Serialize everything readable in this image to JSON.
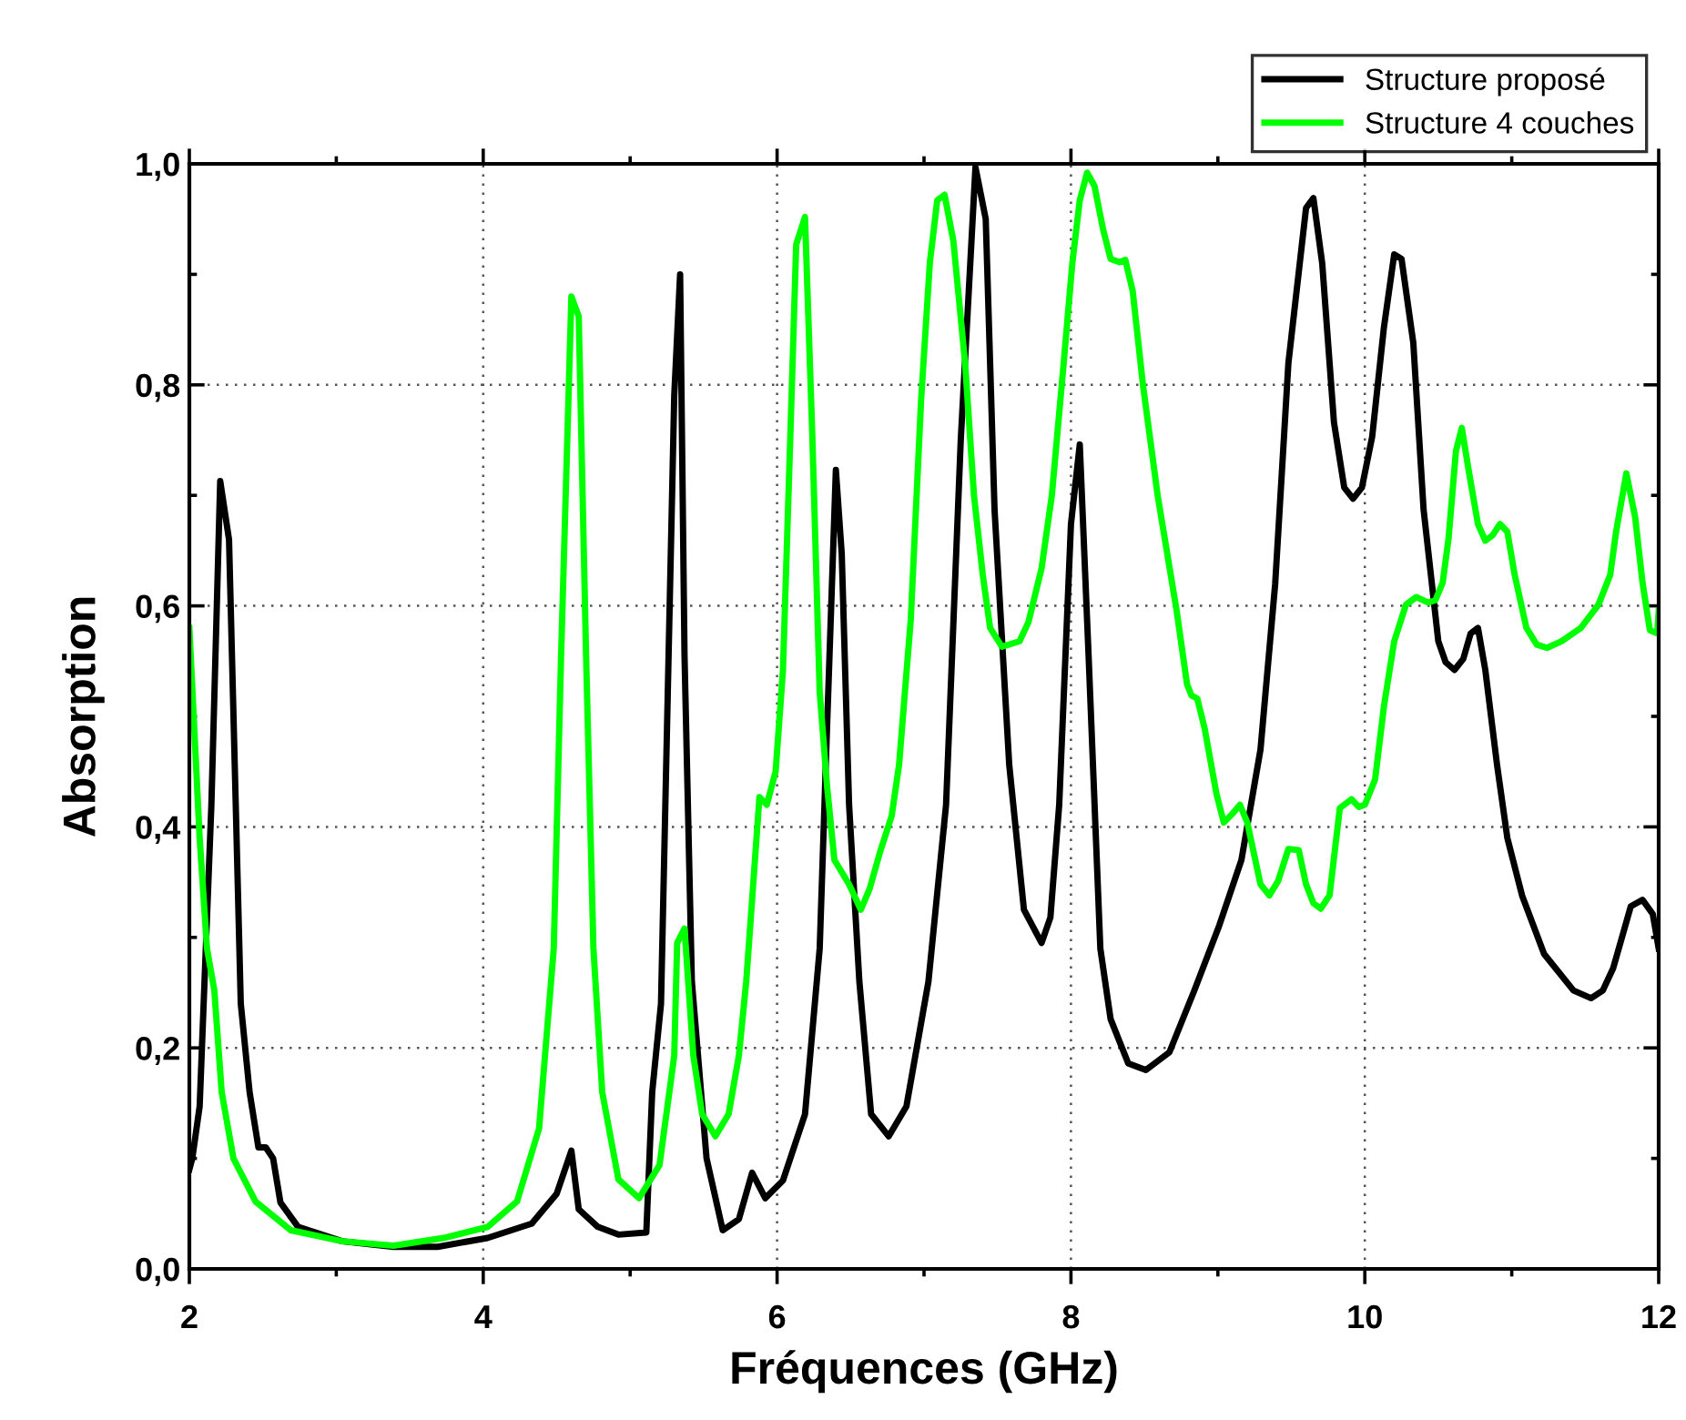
{
  "chart_data": {
    "type": "line",
    "xlabel": "Fréquences (GHz)",
    "ylabel": "Absorption",
    "xlim": [
      2,
      12
    ],
    "ylim": [
      0,
      1
    ],
    "xticks": [
      2,
      {
        "value": 3,
        "label": null
      },
      4,
      {
        "value": 5,
        "label": null
      },
      6,
      {
        "value": 7,
        "label": null
      },
      8,
      {
        "value": 9,
        "label": null
      },
      10,
      {
        "value": 11,
        "label": null
      },
      12
    ],
    "yticks": [
      {
        "value": 0,
        "label": "0,0"
      },
      {
        "value": 0.1,
        "label": null
      },
      {
        "value": 0.2,
        "label": "0,2"
      },
      {
        "value": 0.3,
        "label": null
      },
      {
        "value": 0.4,
        "label": "0,4"
      },
      {
        "value": 0.5,
        "label": null
      },
      {
        "value": 0.6,
        "label": "0,6"
      },
      {
        "value": 0.7,
        "label": null
      },
      {
        "value": 0.8,
        "label": "0,8"
      },
      {
        "value": 0.9,
        "label": null
      },
      {
        "value": 1,
        "label": "1,0"
      }
    ],
    "grid": true,
    "legend": "top right",
    "marker": "none",
    "line_style": "solid",
    "series": [
      {
        "name": "Structure proposé",
        "color": "#000000",
        "x": [
          2.0,
          2.02,
          2.07,
          2.15,
          2.21,
          2.27,
          2.35,
          2.41,
          2.47,
          2.52,
          2.57,
          2.62,
          2.74,
          3.04,
          3.39,
          3.69,
          4.03,
          4.33,
          4.5,
          4.6,
          4.65,
          4.78,
          4.92,
          5.11,
          5.15,
          5.21,
          5.3,
          5.34,
          5.37,
          5.42,
          5.52,
          5.63,
          5.74,
          5.83,
          5.92,
          6.04,
          6.19,
          6.29,
          6.34,
          6.4,
          6.44,
          6.49,
          6.56,
          6.64,
          6.76,
          6.88,
          7.03,
          7.15,
          7.25,
          7.35,
          7.42,
          7.48,
          7.58,
          7.68,
          7.8,
          7.86,
          7.92,
          8.0,
          8.06,
          8.12,
          8.2,
          8.27,
          8.39,
          8.51,
          8.67,
          8.84,
          9.01,
          9.16,
          9.29,
          9.39,
          9.48,
          9.6,
          9.65,
          9.71,
          9.79,
          9.86,
          9.92,
          9.98,
          10.05,
          10.13,
          10.2,
          10.25,
          10.33,
          10.4,
          10.5,
          10.55,
          10.61,
          10.67,
          10.72,
          10.77,
          10.82,
          10.9,
          10.97,
          11.07,
          11.22,
          11.42,
          11.54,
          11.62,
          11.69,
          11.81,
          11.89,
          11.96,
          12.0
        ],
        "values": [
          0.09,
          0.1,
          0.147,
          0.42,
          0.713,
          0.66,
          0.24,
          0.16,
          0.11,
          0.11,
          0.1,
          0.06,
          0.038,
          0.025,
          0.02,
          0.02,
          0.028,
          0.041,
          0.068,
          0.107,
          0.054,
          0.038,
          0.031,
          0.033,
          0.16,
          0.24,
          0.79,
          0.9,
          0.555,
          0.26,
          0.1,
          0.035,
          0.045,
          0.087,
          0.064,
          0.08,
          0.14,
          0.29,
          0.49,
          0.723,
          0.647,
          0.42,
          0.26,
          0.14,
          0.12,
          0.147,
          0.26,
          0.42,
          0.75,
          0.997,
          0.95,
          0.687,
          0.456,
          0.325,
          0.295,
          0.318,
          0.42,
          0.674,
          0.746,
          0.555,
          0.29,
          0.226,
          0.186,
          0.18,
          0.196,
          0.252,
          0.311,
          0.37,
          0.47,
          0.62,
          0.82,
          0.96,
          0.969,
          0.91,
          0.766,
          0.707,
          0.697,
          0.707,
          0.753,
          0.852,
          0.918,
          0.914,
          0.838,
          0.687,
          0.568,
          0.549,
          0.542,
          0.552,
          0.575,
          0.58,
          0.542,
          0.456,
          0.39,
          0.338,
          0.285,
          0.252,
          0.245,
          0.252,
          0.272,
          0.328,
          0.334,
          0.321,
          0.29
        ]
      },
      {
        "name": "Structure 4 couches",
        "color": "#00ff00",
        "x": [
          2.0,
          2.07,
          2.12,
          2.17,
          2.22,
          2.3,
          2.45,
          2.69,
          3.04,
          3.39,
          3.73,
          4.03,
          4.23,
          4.38,
          4.48,
          4.53,
          4.6,
          4.65,
          4.7,
          4.75,
          4.81,
          4.92,
          5.06,
          5.2,
          5.3,
          5.32,
          5.37,
          5.43,
          5.49,
          5.58,
          5.67,
          5.74,
          5.79,
          5.88,
          5.93,
          5.99,
          6.04,
          6.09,
          6.13,
          6.19,
          6.24,
          6.29,
          6.34,
          6.39,
          6.49,
          6.57,
          6.63,
          6.7,
          6.78,
          6.83,
          6.91,
          6.98,
          7.04,
          7.09,
          7.14,
          7.2,
          7.28,
          7.34,
          7.4,
          7.45,
          7.53,
          7.65,
          7.71,
          7.8,
          7.87,
          7.95,
          8.01,
          8.06,
          8.11,
          8.16,
          8.22,
          8.27,
          8.33,
          8.37,
          8.42,
          8.49,
          8.59,
          8.72,
          8.79,
          8.82,
          8.86,
          8.91,
          8.99,
          9.04,
          9.1,
          9.15,
          9.2,
          9.29,
          9.35,
          9.41,
          9.48,
          9.55,
          9.6,
          9.65,
          9.7,
          9.76,
          9.83,
          9.91,
          9.96,
          10.0,
          10.07,
          10.13,
          10.2,
          10.28,
          10.35,
          10.43,
          10.48,
          10.53,
          10.57,
          10.62,
          10.66,
          10.71,
          10.77,
          10.82,
          10.87,
          10.92,
          10.97,
          11.02,
          11.1,
          11.17,
          11.24,
          11.34,
          11.47,
          11.59,
          11.67,
          11.71,
          11.78,
          11.84,
          11.89,
          11.94,
          11.99,
          12.0
        ],
        "values": [
          0.58,
          0.39,
          0.29,
          0.252,
          0.16,
          0.1,
          0.061,
          0.035,
          0.025,
          0.021,
          0.028,
          0.038,
          0.061,
          0.127,
          0.29,
          0.555,
          0.88,
          0.862,
          0.555,
          0.29,
          0.16,
          0.081,
          0.064,
          0.094,
          0.193,
          0.295,
          0.308,
          0.193,
          0.14,
          0.12,
          0.14,
          0.193,
          0.26,
          0.427,
          0.42,
          0.45,
          0.542,
          0.753,
          0.927,
          0.952,
          0.753,
          0.522,
          0.437,
          0.37,
          0.348,
          0.325,
          0.344,
          0.377,
          0.41,
          0.456,
          0.588,
          0.786,
          0.911,
          0.967,
          0.972,
          0.93,
          0.819,
          0.7,
          0.628,
          0.58,
          0.563,
          0.568,
          0.585,
          0.634,
          0.7,
          0.819,
          0.911,
          0.967,
          0.992,
          0.98,
          0.94,
          0.914,
          0.911,
          0.913,
          0.885,
          0.8,
          0.7,
          0.595,
          0.529,
          0.519,
          0.516,
          0.489,
          0.43,
          0.404,
          0.412,
          0.42,
          0.404,
          0.348,
          0.338,
          0.351,
          0.38,
          0.379,
          0.348,
          0.331,
          0.326,
          0.338,
          0.417,
          0.425,
          0.418,
          0.42,
          0.443,
          0.509,
          0.568,
          0.601,
          0.608,
          0.603,
          0.605,
          0.621,
          0.661,
          0.74,
          0.761,
          0.72,
          0.674,
          0.659,
          0.664,
          0.674,
          0.667,
          0.628,
          0.58,
          0.565,
          0.562,
          0.568,
          0.58,
          0.601,
          0.628,
          0.667,
          0.72,
          0.68,
          0.621,
          0.578,
          0.575,
          0.595
        ]
      }
    ]
  }
}
